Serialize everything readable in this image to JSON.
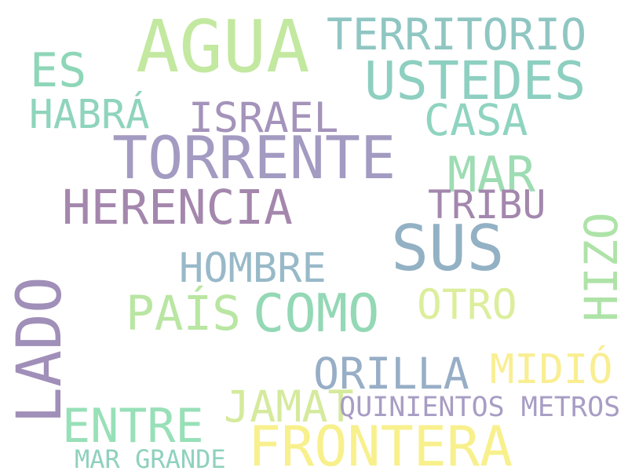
{
  "words": {
    "agua": {
      "text": "AGUA",
      "color": "#c3e8a0"
    },
    "territorio": {
      "text": "TERRITORIO",
      "color": "#8fc6c2"
    },
    "es": {
      "text": "ES",
      "color": "#8ed6b8"
    },
    "ustedes": {
      "text": "USTEDES",
      "color": "#8dcfc0"
    },
    "habra": {
      "text": "HABRÁ",
      "color": "#8fd4bc"
    },
    "israel": {
      "text": "ISRAEL",
      "color": "#a493ba"
    },
    "casa": {
      "text": "CASA",
      "color": "#8fd4c0"
    },
    "torrente": {
      "text": "TORRENTE",
      "color": "#a39bc1"
    },
    "mar": {
      "text": "MAR",
      "color": "#9edcb3"
    },
    "herencia": {
      "text": "HERENCIA",
      "color": "#a487ad"
    },
    "tribu": {
      "text": "TRIBU",
      "color": "#a387ad"
    },
    "hizo": {
      "text": "HIZO",
      "color": "#aee3a8"
    },
    "sus": {
      "text": "SUS",
      "color": "#93b1c4"
    },
    "hombre": {
      "text": "HOMBRE",
      "color": "#98b9c8"
    },
    "lado": {
      "text": "LADO",
      "color": "#a08fb8"
    },
    "pais": {
      "text": "PAÍS",
      "color": "#b9e6a2"
    },
    "como": {
      "text": "COMO",
      "color": "#94d8b6"
    },
    "otro": {
      "text": "OTRO",
      "color": "#dcee9c"
    },
    "orilla": {
      "text": "ORILLA",
      "color": "#97aec6"
    },
    "midio": {
      "text": "MIDIÓ",
      "color": "#f9ee92"
    },
    "jamat": {
      "text": "JAMAT",
      "color": "#d5ea9c"
    },
    "quinientos_metros": {
      "text": "QUINIENTOS METROS",
      "color": "#a89dc4"
    },
    "entre": {
      "text": "ENTRE",
      "color": "#98e0b8"
    },
    "frontera": {
      "text": "FRONTERA",
      "color": "#f8f08c"
    },
    "mar_grande": {
      "text": "MAR GRANDE",
      "color": "#8fd1bd"
    }
  }
}
